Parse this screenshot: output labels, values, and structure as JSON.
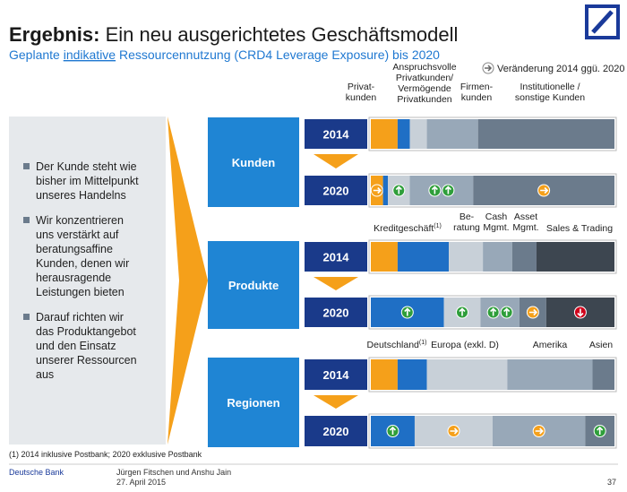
{
  "header": {
    "title_bold": "Ergebnis:",
    "title": "Ein neu ausgerichtetes Geschäftsmodell",
    "subtitle_parts": [
      "Geplante ",
      "indikative",
      " Ressourcennutzung (CRD4 Leverage Exposure) bis 2020"
    ]
  },
  "legend": "Veränderung 2014 ggü. 2020",
  "bullets": [
    [
      "Der Kunde steht wie",
      "bisher im Mittelpunkt",
      "unseres Handelns"
    ],
    [
      "Wir konzentrieren",
      "uns verstärkt auf",
      "beratungsaffine",
      "Kunden, denen wir",
      "herausragende",
      "Leistungen bieten"
    ],
    [
      "Darauf richten wir",
      "das Produktangebot",
      "und den Einsatz",
      "unserer Ressourcen",
      "aus"
    ]
  ],
  "sections": [
    {
      "name": "Kunden",
      "colors": [
        "#f5a01a",
        "#1f6fc5",
        "#c8d0d8",
        "#98a8b8",
        "#6b7b8c"
      ],
      "labels": [
        {
          "lines": [
            "Privat-",
            "kunden"
          ]
        },
        {
          "lines": [
            "Anspruchsvolle",
            "Privatkunden/",
            "Vermögende",
            "Privatkunden"
          ]
        },
        {
          "lines": [
            "Firmen-",
            "kunden"
          ]
        },
        {
          "lines": [
            "Institutionelle /",
            "sonstige Kunden"
          ]
        }
      ],
      "rows": [
        {
          "year": "2014",
          "segments": [
            11,
            5,
            7,
            21,
            56
          ]
        },
        {
          "year": "2020",
          "segments": [
            5,
            2,
            9,
            26,
            58
          ],
          "arrows": [
            [
              "right"
            ],
            [],
            [
              "up"
            ],
            [
              "up",
              "up"
            ],
            [
              "right"
            ]
          ]
        }
      ]
    },
    {
      "name": "Produkte",
      "colors": [
        "#f5a01a",
        "#1f6fc5",
        "#c8d0d8",
        "#98a8b8",
        "#6b7b8c",
        "#3d4650"
      ],
      "labels": [
        {
          "lines": [
            "Kreditgeschäft"
          ],
          "sup": "(1)"
        },
        {
          "lines": [
            "Be-",
            "ratung"
          ]
        },
        {
          "lines": [
            "Cash",
            "Mgmt."
          ]
        },
        {
          "lines": [
            "Asset",
            "Mgmt."
          ]
        },
        {
          "lines": [
            "Sales & Trading"
          ]
        }
      ],
      "rows": [
        {
          "year": "2014",
          "segments": [
            11,
            21,
            14,
            12,
            10,
            32
          ]
        },
        {
          "year": "2020",
          "segments": [
            0,
            30,
            15,
            16,
            11,
            28
          ],
          "arrows": [
            [],
            [
              "up"
            ],
            [
              "up"
            ],
            [
              "up",
              "up"
            ],
            [
              "right"
            ],
            [
              "down"
            ]
          ]
        }
      ]
    },
    {
      "name": "Regionen",
      "colors": [
        "#f5a01a",
        "#1f6fc5",
        "#c8d0d8",
        "#98a8b8",
        "#6b7b8c"
      ],
      "labels": [
        {
          "lines": [
            "Deutschland"
          ],
          "sup": "(1)"
        },
        {
          "lines": [
            "Europa (exkl. D)"
          ]
        },
        {
          "lines": [
            "Amerika"
          ]
        },
        {
          "lines": [
            "Asien"
          ]
        }
      ],
      "rows": [
        {
          "year": "2014",
          "segments": [
            11,
            12,
            33,
            35,
            9
          ]
        },
        {
          "year": "2020",
          "segments": [
            0,
            18,
            32,
            38,
            12
          ],
          "arrows": [
            [],
            [
              "up"
            ],
            [
              "right"
            ],
            [
              "right"
            ],
            [
              "up"
            ]
          ]
        }
      ]
    }
  ],
  "footnote": "(1) 2014 inklusive Postbank; 2020 exklusive Postbank",
  "footer": {
    "company": "Deutsche Bank",
    "speakers": "Jürgen Fitschen und Anshu Jain",
    "date": "27. April 2015",
    "page": "37"
  }
}
